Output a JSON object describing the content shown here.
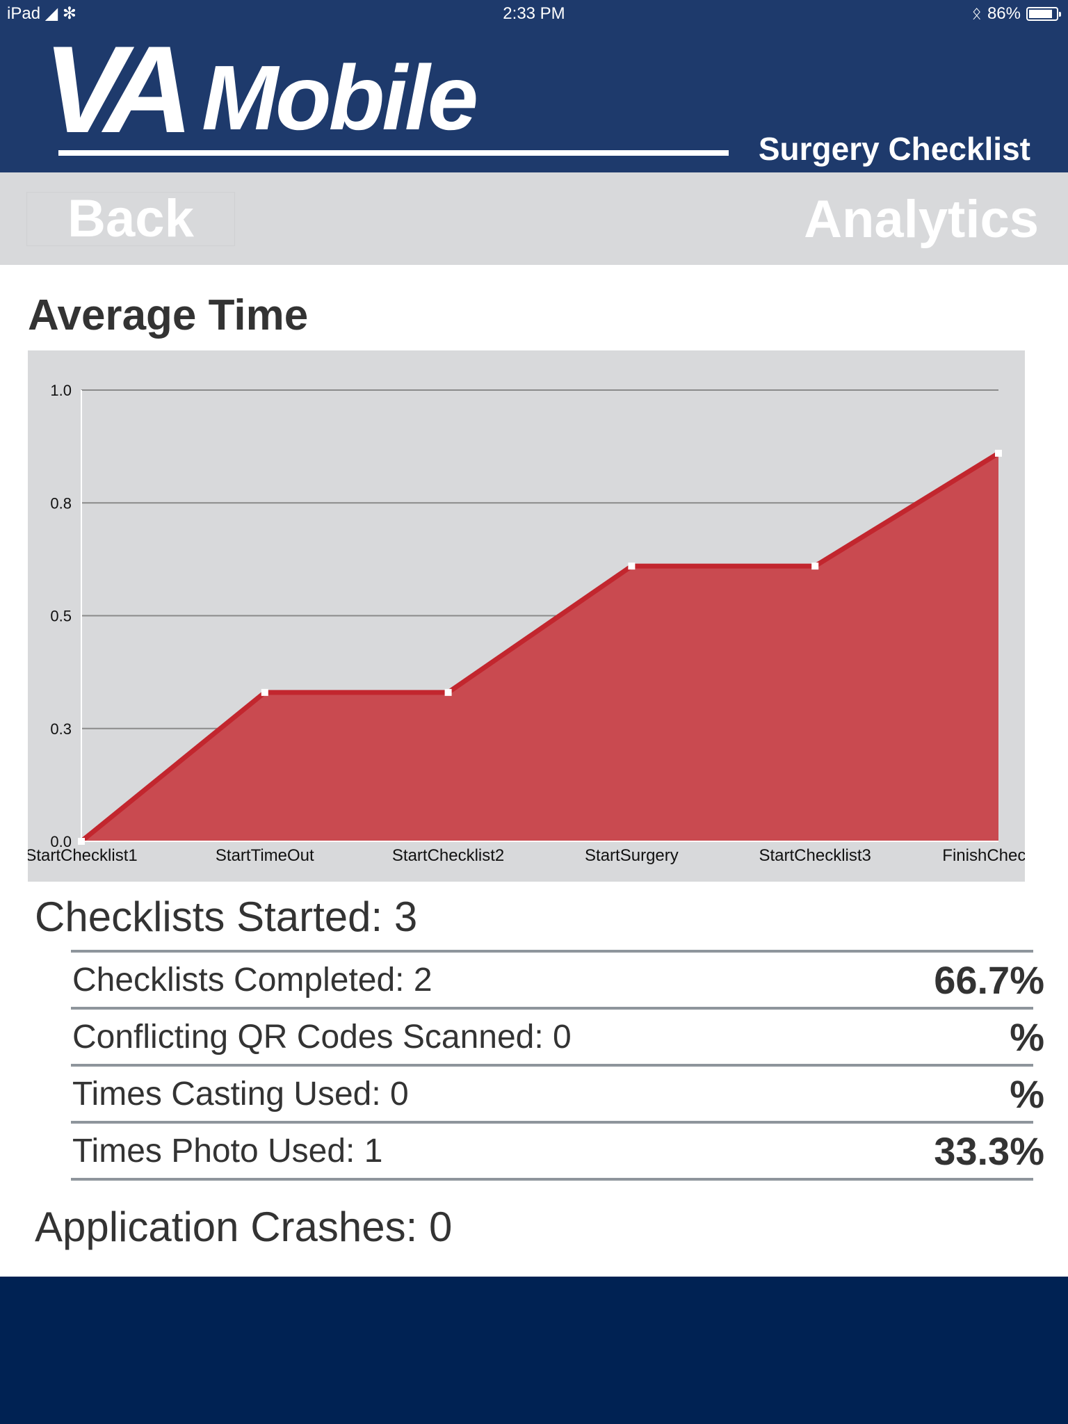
{
  "status_bar": {
    "device": "iPad",
    "time": "2:33 PM",
    "battery": "86%"
  },
  "header": {
    "logo_va": "VA",
    "logo_mobile": "Mobile",
    "app_title": "Surgery Checklist"
  },
  "nav": {
    "back_label": "Back",
    "title": "Analytics"
  },
  "section_title": "Average Time",
  "chart_data": {
    "type": "area",
    "title": "",
    "xlabel": "",
    "ylabel": "",
    "categories": [
      "StartChecklist1",
      "StartTimeOut",
      "StartChecklist2",
      "StartSurgery",
      "StartChecklist3",
      "FinishChecklist"
    ],
    "values": [
      0.0,
      0.33,
      0.33,
      0.61,
      0.61,
      0.86
    ],
    "ylim": [
      0,
      1.0
    ],
    "yticks": [
      0.0,
      0.25,
      0.5,
      0.75,
      1.0
    ],
    "ytick_labels": [
      "0.0",
      "0.3",
      "0.5",
      "0.8",
      "1.0"
    ],
    "grid": true,
    "colors": {
      "fill": "#c94a50",
      "line": "#c2262e",
      "marker": "#ffffff",
      "grid": "#8a8a8a"
    }
  },
  "stats": {
    "started": "Checklists Started: 3",
    "rows": [
      {
        "label": "Checklists Completed: 2",
        "percent": "66.7%"
      },
      {
        "label": "Conflicting QR Codes Scanned: 0",
        "percent": "%"
      },
      {
        "label": "Times Casting Used: 0",
        "percent": "%"
      },
      {
        "label": "Times Photo Used: 1",
        "percent": "33.3%"
      }
    ],
    "crashes": "Application Crashes: 0"
  },
  "colors": {
    "header_bg": "#1e3a6c",
    "nav_bg": "#d8d9db",
    "footer_bg": "#002253"
  }
}
